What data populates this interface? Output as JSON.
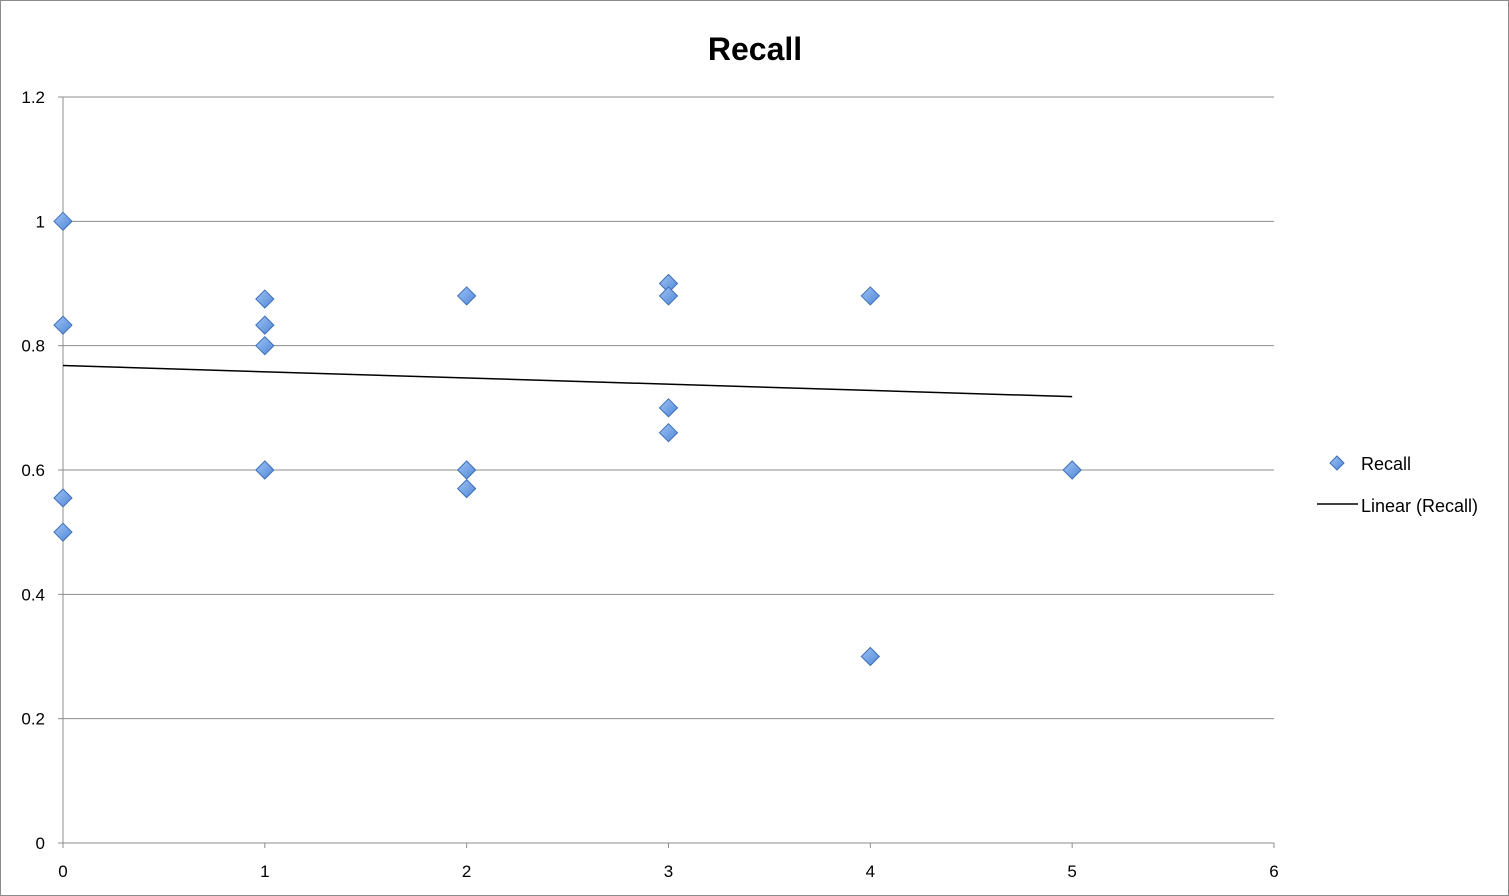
{
  "chart_data": {
    "type": "scatter",
    "title": "Recall",
    "xlabel": "",
    "ylabel": "",
    "xlim": [
      0,
      6
    ],
    "ylim": [
      0,
      1.2
    ],
    "x_ticks": [
      0,
      1,
      2,
      3,
      4,
      5,
      6
    ],
    "y_ticks": [
      0,
      0.2,
      0.4,
      0.6,
      0.8,
      1,
      1.2
    ],
    "x_tick_labels": [
      "0",
      "1",
      "2",
      "3",
      "4",
      "5",
      "6"
    ],
    "y_tick_labels": [
      "0",
      "0.2",
      "0.4",
      "0.6",
      "0.8",
      "1",
      "1.2"
    ],
    "grid": "horizontal",
    "legend_position": "right",
    "series": [
      {
        "name": "Recall",
        "marker": "diamond",
        "color": "#5b8fd9",
        "points": [
          {
            "x": 0,
            "y": 1.0
          },
          {
            "x": 0,
            "y": 0.833
          },
          {
            "x": 0,
            "y": 0.555
          },
          {
            "x": 0,
            "y": 0.5
          },
          {
            "x": 1,
            "y": 0.875
          },
          {
            "x": 1,
            "y": 0.833
          },
          {
            "x": 1,
            "y": 0.8
          },
          {
            "x": 1,
            "y": 0.6
          },
          {
            "x": 2,
            "y": 0.88
          },
          {
            "x": 2,
            "y": 0.6
          },
          {
            "x": 2,
            "y": 0.57
          },
          {
            "x": 3,
            "y": 0.9
          },
          {
            "x": 3,
            "y": 0.88
          },
          {
            "x": 3,
            "y": 0.7
          },
          {
            "x": 3,
            "y": 0.66
          },
          {
            "x": 4,
            "y": 0.88
          },
          {
            "x": 4,
            "y": 0.3
          },
          {
            "x": 5,
            "y": 0.6
          }
        ]
      }
    ],
    "trendline": {
      "name": "Linear (Recall)",
      "type": "linear",
      "color": "#000000",
      "x_start": 0,
      "x_end": 5,
      "y_start": 0.768,
      "y_end": 0.718
    }
  }
}
